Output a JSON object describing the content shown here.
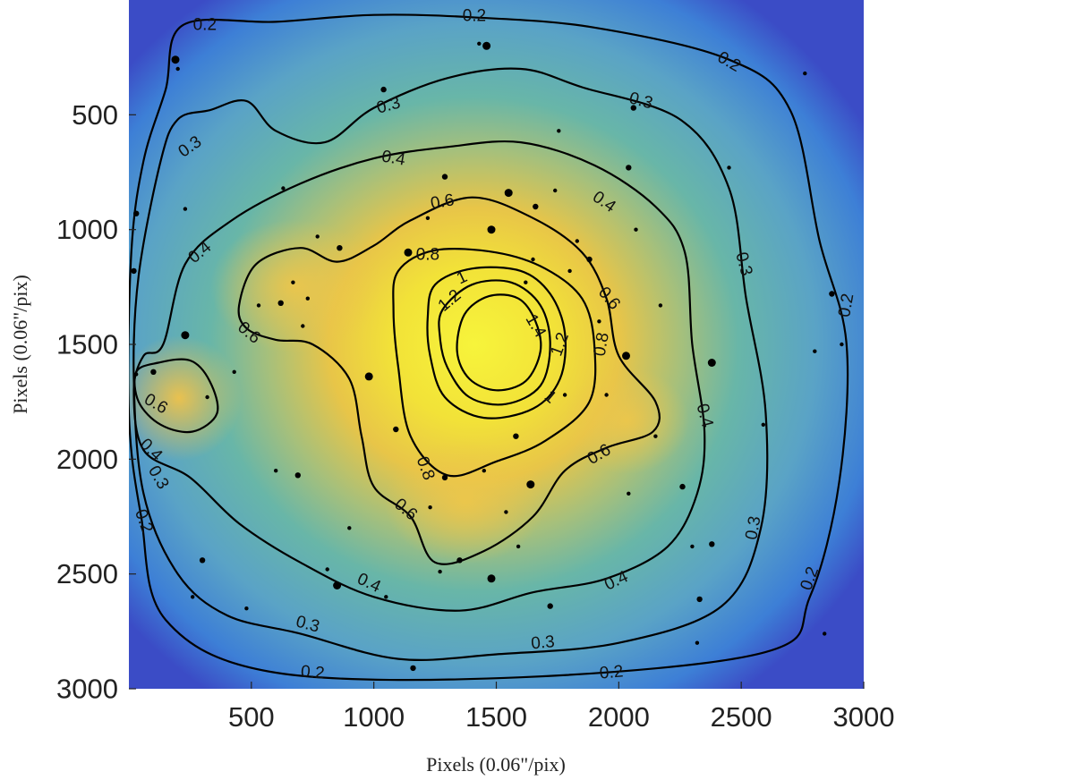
{
  "chart_data": {
    "type": "heatmap",
    "title": "",
    "xlabel": "Pixels (0.06\"/pix)",
    "ylabel": "Pixels (0.06\"/pix)",
    "xlim": [
      0,
      3000
    ],
    "ylim": [
      0,
      3000
    ],
    "y_direction": "down",
    "x_ticks": [
      "500",
      "1000",
      "1500",
      "2000",
      "2500",
      "3000"
    ],
    "y_ticks": [
      "500",
      "1000",
      "1500",
      "2000",
      "2500",
      "3000"
    ],
    "colormap": [
      "#3b4cc6",
      "#3b88d0",
      "#57aec2",
      "#7bc090",
      "#d8bc4f",
      "#f2d23c",
      "#f7f43b"
    ],
    "peak": {
      "x": 1500,
      "y": 1500
    },
    "contour_levels": [
      "0.2",
      "0.3",
      "0.4",
      "0.6",
      "0.8",
      "1",
      "1.2",
      "1.4"
    ],
    "contours": [
      {
        "level": "0.2",
        "points": [
          [
            150,
            390
          ],
          [
            220,
            110
          ],
          [
            600,
            95
          ],
          [
            1000,
            65
          ],
          [
            1400,
            75
          ],
          [
            1900,
            120
          ],
          [
            2450,
            260
          ],
          [
            2700,
            480
          ],
          [
            2820,
            1050
          ],
          [
            2930,
            1500
          ],
          [
            2900,
            2100
          ],
          [
            2780,
            2600
          ],
          [
            2600,
            2840
          ],
          [
            1600,
            2950
          ],
          [
            600,
            2930
          ],
          [
            150,
            2700
          ],
          [
            50,
            2250
          ],
          [
            0,
            1800
          ],
          [
            10,
            1100
          ],
          [
            60,
            700
          ]
        ]
      },
      {
        "level": "0.3",
        "points": [
          [
            130,
            700
          ],
          [
            200,
            520
          ],
          [
            330,
            480
          ],
          [
            480,
            440
          ],
          [
            600,
            570
          ],
          [
            800,
            620
          ],
          [
            1000,
            470
          ],
          [
            1300,
            340
          ],
          [
            1600,
            300
          ],
          [
            1850,
            380
          ],
          [
            2250,
            520
          ],
          [
            2450,
            820
          ],
          [
            2520,
            1300
          ],
          [
            2600,
            1800
          ],
          [
            2580,
            2300
          ],
          [
            2420,
            2640
          ],
          [
            2000,
            2800
          ],
          [
            1500,
            2850
          ],
          [
            1100,
            2870
          ],
          [
            700,
            2760
          ],
          [
            400,
            2680
          ],
          [
            200,
            2500
          ],
          [
            60,
            2150
          ],
          [
            20,
            1650
          ],
          [
            40,
            1200
          ]
        ]
      },
      {
        "level": "0.4",
        "points": [
          [
            140,
            1500
          ],
          [
            230,
            1150
          ],
          [
            420,
            960
          ],
          [
            700,
            800
          ],
          [
            1000,
            690
          ],
          [
            1300,
            640
          ],
          [
            1600,
            620
          ],
          [
            1900,
            720
          ],
          [
            2150,
            900
          ],
          [
            2270,
            1100
          ],
          [
            2300,
            1500
          ],
          [
            2350,
            1880
          ],
          [
            2320,
            2150
          ],
          [
            2200,
            2380
          ],
          [
            1950,
            2520
          ],
          [
            1650,
            2580
          ],
          [
            1350,
            2660
          ],
          [
            1000,
            2600
          ],
          [
            700,
            2450
          ],
          [
            450,
            2280
          ],
          [
            250,
            2080
          ],
          [
            60,
            1960
          ],
          [
            20,
            1700
          ],
          [
            60,
            1550
          ]
        ]
      },
      {
        "level": "0.6",
        "points": [
          [
            450,
            1330
          ],
          [
            520,
            1150
          ],
          [
            700,
            1080
          ],
          [
            850,
            1140
          ],
          [
            1000,
            1070
          ],
          [
            1150,
            960
          ],
          [
            1400,
            860
          ],
          [
            1650,
            950
          ],
          [
            1850,
            1100
          ],
          [
            1950,
            1300
          ],
          [
            2000,
            1550
          ],
          [
            2150,
            1750
          ],
          [
            2140,
            1880
          ],
          [
            1950,
            1950
          ],
          [
            1780,
            2050
          ],
          [
            1650,
            2250
          ],
          [
            1450,
            2400
          ],
          [
            1250,
            2450
          ],
          [
            1150,
            2250
          ],
          [
            1000,
            2120
          ],
          [
            950,
            1900
          ],
          [
            900,
            1650
          ],
          [
            750,
            1500
          ],
          [
            600,
            1480
          ],
          [
            480,
            1430
          ]
        ]
      },
      {
        "level": "0.6",
        "points": [
          [
            30,
            1620
          ],
          [
            120,
            1580
          ],
          [
            250,
            1570
          ],
          [
            330,
            1660
          ],
          [
            360,
            1800
          ],
          [
            260,
            1880
          ],
          [
            130,
            1850
          ],
          [
            40,
            1750
          ]
        ]
      },
      {
        "level": "0.8",
        "points": [
          [
            1100,
            1180
          ],
          [
            1250,
            1090
          ],
          [
            1500,
            1100
          ],
          [
            1700,
            1170
          ],
          [
            1850,
            1300
          ],
          [
            1900,
            1500
          ],
          [
            1880,
            1750
          ],
          [
            1700,
            1920
          ],
          [
            1500,
            2010
          ],
          [
            1300,
            2070
          ],
          [
            1150,
            1900
          ],
          [
            1100,
            1600
          ],
          [
            1080,
            1350
          ]
        ]
      },
      {
        "level": "1",
        "points": [
          [
            1250,
            1240
          ],
          [
            1400,
            1170
          ],
          [
            1600,
            1180
          ],
          [
            1720,
            1280
          ],
          [
            1780,
            1450
          ],
          [
            1760,
            1650
          ],
          [
            1650,
            1780
          ],
          [
            1450,
            1820
          ],
          [
            1290,
            1730
          ],
          [
            1230,
            1550
          ],
          [
            1220,
            1380
          ]
        ]
      },
      {
        "level": "1.2",
        "points": [
          [
            1280,
            1350
          ],
          [
            1400,
            1240
          ],
          [
            1560,
            1230
          ],
          [
            1680,
            1330
          ],
          [
            1720,
            1500
          ],
          [
            1680,
            1680
          ],
          [
            1540,
            1760
          ],
          [
            1390,
            1730
          ],
          [
            1300,
            1600
          ],
          [
            1270,
            1470
          ]
        ]
      },
      {
        "level": "1.4",
        "points": [
          [
            1370,
            1370
          ],
          [
            1470,
            1290
          ],
          [
            1590,
            1300
          ],
          [
            1660,
            1400
          ],
          [
            1680,
            1530
          ],
          [
            1620,
            1660
          ],
          [
            1500,
            1700
          ],
          [
            1390,
            1650
          ],
          [
            1340,
            1530
          ]
        ]
      }
    ],
    "contour_labels": [
      {
        "text": "0.2",
        "x": 310,
        "y": 110,
        "angle": 0
      },
      {
        "text": "0.2",
        "x": 1410,
        "y": 70,
        "angle": 0
      },
      {
        "text": "0.2",
        "x": 2450,
        "y": 270,
        "angle": 30
      },
      {
        "text": "0.2",
        "x": 2930,
        "y": 1330,
        "angle": -80
      },
      {
        "text": "0.2",
        "x": 2780,
        "y": 2520,
        "angle": -70
      },
      {
        "text": "0.2",
        "x": 1970,
        "y": 2930,
        "angle": -5
      },
      {
        "text": "0.2",
        "x": 750,
        "y": 2930,
        "angle": 5
      },
      {
        "text": "0.2",
        "x": 60,
        "y": 2270,
        "angle": 70
      },
      {
        "text": "0.3",
        "x": 1060,
        "y": 460,
        "angle": -15
      },
      {
        "text": "0.3",
        "x": 2090,
        "y": 440,
        "angle": 15
      },
      {
        "text": "0.3",
        "x": 2510,
        "y": 1150,
        "angle": 75
      },
      {
        "text": "0.3",
        "x": 2550,
        "y": 2300,
        "angle": -80
      },
      {
        "text": "0.3",
        "x": 1690,
        "y": 2800,
        "angle": -5
      },
      {
        "text": "0.3",
        "x": 730,
        "y": 2720,
        "angle": 15
      },
      {
        "text": "0.3",
        "x": 120,
        "y": 2080,
        "angle": 60
      },
      {
        "text": "0.3",
        "x": 250,
        "y": 640,
        "angle": -35
      },
      {
        "text": "0.4",
        "x": 1080,
        "y": 690,
        "angle": 10
      },
      {
        "text": "0.4",
        "x": 1940,
        "y": 880,
        "angle": 35
      },
      {
        "text": "0.4",
        "x": 2350,
        "y": 1810,
        "angle": 75
      },
      {
        "text": "0.4",
        "x": 1990,
        "y": 2530,
        "angle": -25
      },
      {
        "text": "0.4",
        "x": 980,
        "y": 2540,
        "angle": 25
      },
      {
        "text": "0.4",
        "x": 90,
        "y": 1960,
        "angle": 45
      },
      {
        "text": "0.4",
        "x": 290,
        "y": 1100,
        "angle": -40
      },
      {
        "text": "0.6",
        "x": 1280,
        "y": 880,
        "angle": -10
      },
      {
        "text": "0.6",
        "x": 1960,
        "y": 1300,
        "angle": 50
      },
      {
        "text": "0.6",
        "x": 1920,
        "y": 1980,
        "angle": -30
      },
      {
        "text": "0.6",
        "x": 1130,
        "y": 2220,
        "angle": 40
      },
      {
        "text": "0.6",
        "x": 490,
        "y": 1450,
        "angle": 40
      },
      {
        "text": "0.6",
        "x": 110,
        "y": 1760,
        "angle": 30
      },
      {
        "text": "0.8",
        "x": 1220,
        "y": 1110,
        "angle": 0
      },
      {
        "text": "0.8",
        "x": 1930,
        "y": 1500,
        "angle": -80
      },
      {
        "text": "0.8",
        "x": 1210,
        "y": 2040,
        "angle": 70
      },
      {
        "text": "1",
        "x": 1360,
        "y": 1210,
        "angle": -25
      },
      {
        "text": "1",
        "x": 1720,
        "y": 1730,
        "angle": 40
      },
      {
        "text": "1.2",
        "x": 1310,
        "y": 1310,
        "angle": -40
      },
      {
        "text": "1.2",
        "x": 1760,
        "y": 1500,
        "angle": -70
      },
      {
        "text": "1.4",
        "x": 1660,
        "y": 1420,
        "angle": 60
      }
    ],
    "point_sources": [
      [
        190,
        260
      ],
      [
        200,
        300
      ],
      [
        1430,
        190
      ],
      [
        2060,
        470
      ],
      [
        1755,
        570
      ],
      [
        2450,
        730
      ],
      [
        2040,
        730
      ],
      [
        1550,
        840
      ],
      [
        1740,
        830
      ],
      [
        1660,
        900
      ],
      [
        1220,
        950
      ],
      [
        230,
        910
      ],
      [
        30,
        930
      ],
      [
        770,
        1030
      ],
      [
        1480,
        1000
      ],
      [
        860,
        1080
      ],
      [
        1650,
        1130
      ],
      [
        1800,
        1180
      ],
      [
        1880,
        1130
      ],
      [
        2170,
        1330
      ],
      [
        1920,
        1400
      ],
      [
        2030,
        1550
      ],
      [
        1950,
        1720
      ],
      [
        2150,
        1900
      ],
      [
        1580,
        1900
      ],
      [
        1450,
        2050
      ],
      [
        1540,
        2230
      ],
      [
        1350,
        2440
      ],
      [
        1480,
        2520
      ],
      [
        1270,
        2490
      ],
      [
        1720,
        2640
      ],
      [
        1050,
        2600
      ],
      [
        810,
        2480
      ],
      [
        300,
        2440
      ],
      [
        480,
        2650
      ],
      [
        850,
        2550
      ],
      [
        2380,
        2370
      ],
      [
        2300,
        2380
      ],
      [
        2840,
        2760
      ],
      [
        1160,
        2910
      ],
      [
        2320,
        2800
      ],
      [
        320,
        1730
      ],
      [
        230,
        1460
      ],
      [
        670,
        1230
      ],
      [
        730,
        1300
      ],
      [
        620,
        1320
      ],
      [
        710,
        1420
      ],
      [
        530,
        1330
      ],
      [
        100,
        1620
      ],
      [
        1140,
        1100
      ],
      [
        2800,
        1530
      ],
      [
        2870,
        1280
      ],
      [
        2910,
        1500
      ],
      [
        30,
        1630
      ],
      [
        20,
        1180
      ],
      [
        260,
        2600
      ],
      [
        980,
        1640
      ],
      [
        1090,
        1870
      ],
      [
        1620,
        1230
      ],
      [
        1780,
        1720
      ],
      [
        1290,
        2080
      ],
      [
        600,
        2050
      ],
      [
        2040,
        2150
      ],
      [
        1640,
        2110
      ],
      [
        2070,
        1000
      ],
      [
        430,
        1620
      ],
      [
        690,
        2070
      ],
      [
        900,
        2300
      ],
      [
        1590,
        2380
      ],
      [
        2260,
        2120
      ],
      [
        2380,
        1580
      ],
      [
        2590,
        1850
      ],
      [
        2330,
        2610
      ],
      [
        2760,
        320
      ],
      [
        630,
        820
      ],
      [
        1290,
        770
      ],
      [
        1830,
        1050
      ],
      [
        1460,
        200
      ],
      [
        1040,
        390
      ],
      [
        1230,
        2210
      ]
    ]
  }
}
